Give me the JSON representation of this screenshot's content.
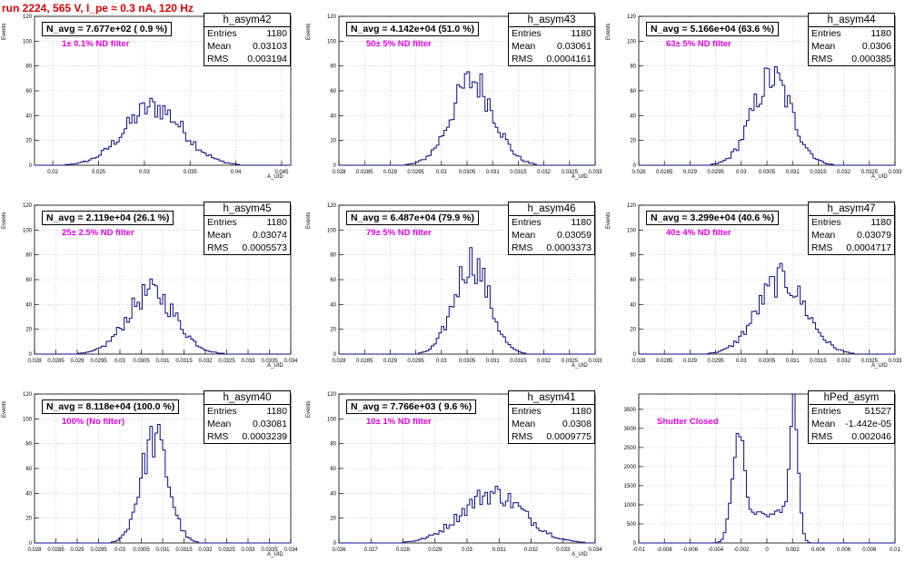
{
  "run_title": "run 2224,   565 V, I_pe ≈ 0.3 nA, 120 Hz",
  "colors": {
    "title": "#e00000",
    "hist": "#0a0a8a",
    "filter_text": "#e000e0",
    "grid": "#b0b0b0"
  },
  "chart_data": [
    {
      "type": "bar",
      "name": "h_asym42",
      "stats": {
        "entries": "1180",
        "mean": "0.03103",
        "rms": "0.003194"
      },
      "navg": "N_avg = 7.677e+02 ( 0.9 %)",
      "filter": "1± 0.1% ND filter",
      "xlabel": "A_UID",
      "ylabel": "Events",
      "xlim": [
        0.018,
        0.046
      ],
      "ylim": [
        0,
        120
      ],
      "xticks": [
        0.02,
        0.025,
        0.03,
        0.035,
        0.04,
        0.045
      ],
      "xtick_labels": [
        "0.02",
        "0.025",
        "0.03",
        "0.035",
        "0.04",
        "0.045"
      ],
      "yticks": [
        0,
        20,
        40,
        60,
        80,
        100,
        120
      ],
      "mean_val": 0.03103,
      "sigma": 0.003194,
      "peak": 47
    },
    {
      "type": "bar",
      "name": "h_asym43",
      "stats": {
        "entries": "1180",
        "mean": "0.03061",
        "rms": "0.0004161"
      },
      "navg": "N_avg = 4.142e+04 (51.0 %)",
      "filter": "50± 5% ND filter",
      "xlabel": "A_UID",
      "ylabel": "Events",
      "xlim": [
        0.028,
        0.033
      ],
      "ylim": [
        0,
        120
      ],
      "xticks": [
        0.028,
        0.0285,
        0.029,
        0.0295,
        0.03,
        0.0305,
        0.031,
        0.0315,
        0.032,
        0.0325,
        0.033
      ],
      "xtick_labels": [
        "0.028",
        "0.0285",
        "0.029",
        "0.0295",
        "0.03",
        "0.0305",
        "0.031",
        "0.0315",
        "0.032",
        "0.0325",
        "0.033"
      ],
      "yticks": [
        0,
        20,
        40,
        60,
        80,
        100,
        120
      ],
      "mean_val": 0.03061,
      "sigma": 0.0004161,
      "peak": 68
    },
    {
      "type": "bar",
      "name": "h_asym44",
      "stats": {
        "entries": "1180",
        "mean": "0.0306",
        "rms": "0.000385"
      },
      "navg": "N_avg = 5.166e+04 (63.6 %)",
      "filter": "63± 5% ND filter",
      "xlabel": "A_UID",
      "ylabel": "Events",
      "xlim": [
        0.028,
        0.033
      ],
      "ylim": [
        0,
        120
      ],
      "xticks": [
        0.028,
        0.0285,
        0.029,
        0.0295,
        0.03,
        0.0305,
        0.031,
        0.0315,
        0.032,
        0.0325,
        0.033
      ],
      "xtick_labels": [
        "0.028",
        "0.0285",
        "0.029",
        "0.0295",
        "0.03",
        "0.0305",
        "0.031",
        "0.0315",
        "0.032",
        "0.0325",
        "0.033"
      ],
      "yticks": [
        0,
        20,
        40,
        60,
        80,
        100,
        120
      ],
      "mean_val": 0.0306,
      "sigma": 0.000385,
      "peak": 70
    },
    {
      "type": "bar",
      "name": "h_asym45",
      "stats": {
        "entries": "1180",
        "mean": "0.03074",
        "rms": "0.0005573"
      },
      "navg": "N_avg = 2.119e+04 (26.1 %)",
      "filter": "25± 2.5% ND filter",
      "xlabel": "A_UID",
      "ylabel": "Events",
      "xlim": [
        0.028,
        0.034
      ],
      "ylim": [
        0,
        120
      ],
      "xticks": [
        0.028,
        0.0285,
        0.029,
        0.0295,
        0.03,
        0.0305,
        0.031,
        0.0315,
        0.032,
        0.0325,
        0.033,
        0.0335,
        0.034
      ],
      "xtick_labels": [
        "0.028",
        "0.0285",
        "0.029",
        "0.0295",
        "0.03",
        "0.0305",
        "0.031",
        "0.0315",
        "0.032",
        "0.0325",
        "0.033",
        "0.0335",
        "0.034"
      ],
      "yticks": [
        0,
        20,
        40,
        60,
        80,
        100,
        120
      ],
      "mean_val": 0.03074,
      "sigma": 0.0005573,
      "peak": 50
    },
    {
      "type": "bar",
      "name": "h_asym46",
      "stats": {
        "entries": "1180",
        "mean": "0.03059",
        "rms": "0.0003373"
      },
      "navg": "N_avg = 6.487e+04 (79.9 %)",
      "filter": "79± 5% ND filter",
      "xlabel": "A_UID",
      "ylabel": "Events",
      "xlim": [
        0.028,
        0.033
      ],
      "ylim": [
        0,
        120
      ],
      "xticks": [
        0.028,
        0.0285,
        0.029,
        0.0295,
        0.03,
        0.0305,
        0.031,
        0.0315,
        0.032,
        0.0325,
        0.033
      ],
      "xtick_labels": [
        "0.028",
        "0.0285",
        "0.029",
        "0.0295",
        "0.03",
        "0.0305",
        "0.031",
        "0.0315",
        "0.032",
        "0.0325",
        "0.033"
      ],
      "yticks": [
        0,
        20,
        40,
        60,
        80,
        100,
        120
      ],
      "mean_val": 0.03059,
      "sigma": 0.0003373,
      "peak": 75
    },
    {
      "type": "bar",
      "name": "h_asym47",
      "stats": {
        "entries": "1180",
        "mean": "0.03079",
        "rms": "0.0004717"
      },
      "navg": "N_avg = 3.299e+04 (40.6 %)",
      "filter": "40± 4% ND filter",
      "xlabel": "A_UID",
      "ylabel": "Events",
      "xlim": [
        0.028,
        0.033
      ],
      "ylim": [
        0,
        120
      ],
      "xticks": [
        0.028,
        0.0285,
        0.029,
        0.0295,
        0.03,
        0.0305,
        0.031,
        0.0315,
        0.032,
        0.0325,
        0.033
      ],
      "xtick_labels": [
        "0.028",
        "0.0285",
        "0.029",
        "0.0295",
        "0.03",
        "0.0305",
        "0.031",
        "0.0315",
        "0.032",
        "0.0325",
        "0.033"
      ],
      "yticks": [
        0,
        20,
        40,
        60,
        80,
        100,
        120
      ],
      "mean_val": 0.03079,
      "sigma": 0.0004717,
      "peak": 60
    },
    {
      "type": "bar",
      "name": "h_asym40",
      "stats": {
        "entries": "1180",
        "mean": "0.03081",
        "rms": "0.0003239"
      },
      "navg": "N_avg = 8.118e+04 (100.0 %)",
      "filter": "100% (No filter)",
      "xlabel": "A_UID",
      "ylabel": "Events",
      "xlim": [
        0.028,
        0.034
      ],
      "ylim": [
        0,
        120
      ],
      "xticks": [
        0.028,
        0.0285,
        0.029,
        0.0295,
        0.03,
        0.0305,
        0.031,
        0.0315,
        0.032,
        0.0325,
        0.033,
        0.0335,
        0.034
      ],
      "xtick_labels": [
        "0.028",
        "0.0285",
        "0.029",
        "0.0295",
        "0.03",
        "0.0305",
        "0.031",
        "0.0315",
        "0.032",
        "0.0325",
        "0.033",
        "0.0335",
        "0.034"
      ],
      "yticks": [
        0,
        20,
        40,
        60,
        80,
        100,
        120
      ],
      "mean_val": 0.03081,
      "sigma": 0.0003239,
      "peak": 84
    },
    {
      "type": "bar",
      "name": "h_asym41",
      "stats": {
        "entries": "1180",
        "mean": "0.0308",
        "rms": "0.0009775"
      },
      "navg": "N_avg = 7.766e+03 ( 9.6 %)",
      "filter": "10± 1% ND filter",
      "xlabel": "A_UID",
      "ylabel": "Events",
      "xlim": [
        0.026,
        0.034
      ],
      "ylim": [
        0,
        120
      ],
      "xticks": [
        0.026,
        0.027,
        0.028,
        0.029,
        0.03,
        0.031,
        0.032,
        0.033,
        0.034
      ],
      "xtick_labels": [
        "0.026",
        "0.027",
        "0.028",
        "0.029",
        "0.03",
        "0.031",
        "0.032",
        "0.033",
        "0.034"
      ],
      "yticks": [
        0,
        20,
        40,
        60,
        80,
        100,
        120
      ],
      "mean_val": 0.0308,
      "sigma": 0.0009775,
      "peak": 40
    },
    {
      "type": "bar",
      "name": "hPed_asym",
      "stats": {
        "entries": "51527",
        "mean": "-1.442e-05",
        "rms": "0.002046"
      },
      "navg": "",
      "filter": "Shutter Closed",
      "xlabel": "",
      "ylabel": "",
      "xlim": [
        -0.01,
        0.01
      ],
      "ylim": [
        0,
        3900
      ],
      "xticks": [
        -0.01,
        -0.008,
        -0.006,
        -0.004,
        -0.002,
        0,
        0.002,
        0.004,
        0.006,
        0.008,
        0.01
      ],
      "xtick_labels": [
        "-0.01",
        "-0.008",
        "-0.006",
        "-0.004",
        "-0.002",
        "0",
        "0.002",
        "0.004",
        "0.006",
        "0.008",
        "0.01"
      ],
      "yticks": [
        0,
        500,
        1000,
        1500,
        2000,
        2500,
        3000,
        3500
      ],
      "bimodal": true,
      "peaks": [
        {
          "center": -0.0022,
          "sigma": 0.0005,
          "height": 2950
        },
        {
          "center": 0.0021,
          "sigma": 0.00035,
          "height": 3650
        }
      ],
      "floor": 720
    }
  ]
}
